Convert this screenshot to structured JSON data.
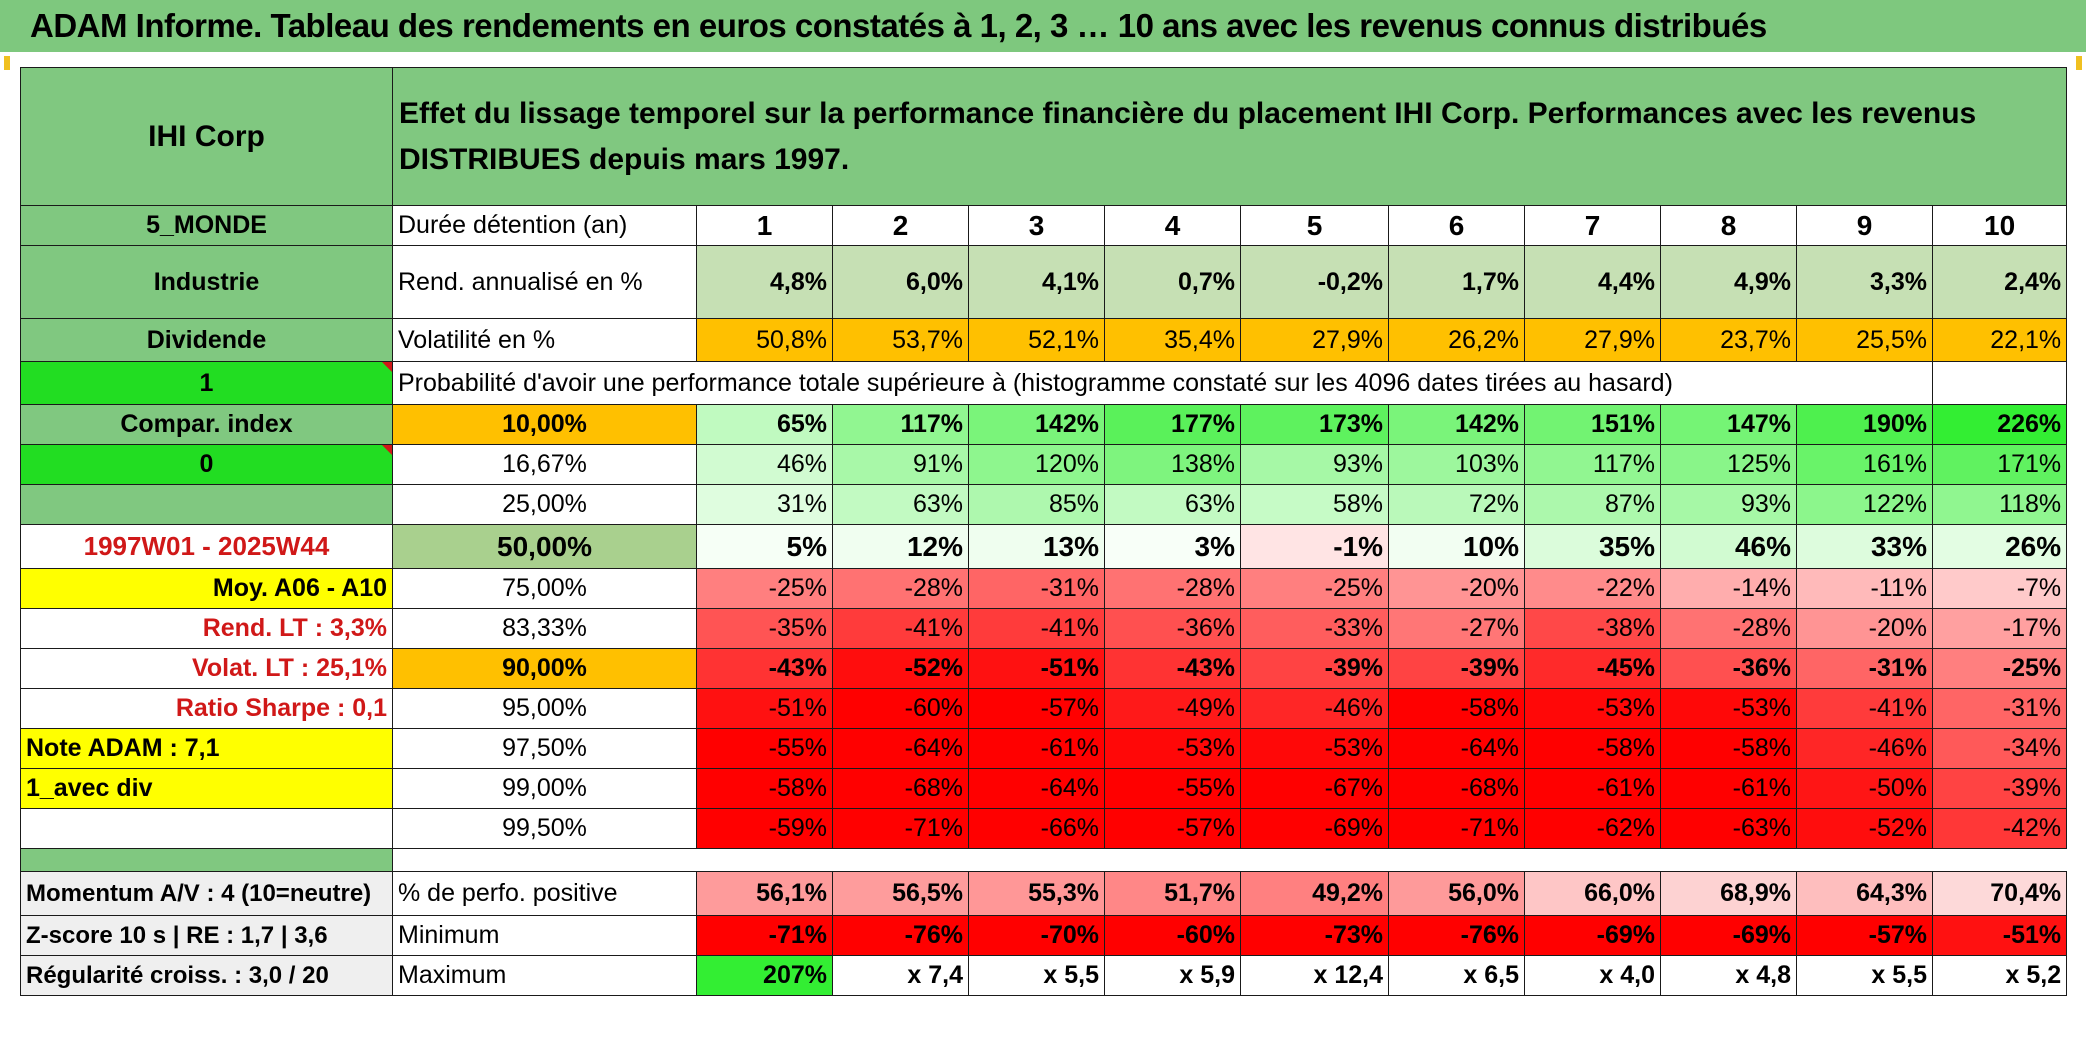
{
  "title": "ADAM Informe. Tableau des rendements en euros constatés à 1, 2, 3 … 10 ans avec les revenus connus distribués",
  "company": "IHI Corp",
  "heading": "Effet du lissage temporel sur la performance financière du placement IHI Corp. Performances avec les revenus DISTRIBUES depuis mars 1997.",
  "left_labels": {
    "region": "5_MONDE",
    "sector": "Industrie",
    "dividend": "Dividende",
    "flag1": "1",
    "compar": "Compar. index",
    "flag0": "0",
    "period": "1997W01 - 2025W44",
    "moy": "Moy. A06 - A10",
    "rend_lt": "Rend. LT :   3,3%",
    "volat_lt": "Volat. LT :   25,1%",
    "sharpe": "Ratio Sharpe :    0,1",
    "note": "Note ADAM : 7,1",
    "avec_div": "1_avec div",
    "momentum": "Momentum A/V : 4 (10=neutre)",
    "zscore": "Z-score 10 s | RE : 1,7 | 3,6",
    "regularite": "Régularité croiss. : 3,0 / 20"
  },
  "row_labels": {
    "duree": "Durée détention (an)",
    "rend": "Rend. annualisé en %",
    "volat": "Volatilité en %",
    "proba": "Probabilité d'avoir une performance totale supérieure à (histogramme constaté sur les 4096 dates tirées au hasard)",
    "positive": "% de perfo. positive",
    "minimum": "Minimum",
    "maximum": "Maximum"
  },
  "years": [
    "1",
    "2",
    "3",
    "4",
    "5",
    "6",
    "7",
    "8",
    "9",
    "10"
  ],
  "rend": [
    "4,8%",
    "6,0%",
    "4,1%",
    "0,7%",
    "-0,2%",
    "1,7%",
    "4,4%",
    "4,9%",
    "3,3%",
    "2,4%"
  ],
  "volat": [
    "50,8%",
    "53,7%",
    "52,1%",
    "35,4%",
    "27,9%",
    "26,2%",
    "27,9%",
    "23,7%",
    "25,5%",
    "22,1%"
  ],
  "prob_rows": [
    {
      "pct": "10,00%",
      "vals": [
        "65%",
        "117%",
        "142%",
        "177%",
        "173%",
        "142%",
        "151%",
        "147%",
        "190%",
        "226%"
      ]
    },
    {
      "pct": "16,67%",
      "vals": [
        "46%",
        "91%",
        "120%",
        "138%",
        "93%",
        "103%",
        "117%",
        "125%",
        "161%",
        "171%"
      ]
    },
    {
      "pct": "25,00%",
      "vals": [
        "31%",
        "63%",
        "85%",
        "63%",
        "58%",
        "72%",
        "87%",
        "93%",
        "122%",
        "118%"
      ]
    },
    {
      "pct": "50,00%",
      "vals": [
        "5%",
        "12%",
        "13%",
        "3%",
        "-1%",
        "10%",
        "35%",
        "46%",
        "33%",
        "26%"
      ]
    },
    {
      "pct": "75,00%",
      "vals": [
        "-25%",
        "-28%",
        "-31%",
        "-28%",
        "-25%",
        "-20%",
        "-22%",
        "-14%",
        "-11%",
        "-7%"
      ]
    },
    {
      "pct": "83,33%",
      "vals": [
        "-35%",
        "-41%",
        "-41%",
        "-36%",
        "-33%",
        "-27%",
        "-38%",
        "-28%",
        "-20%",
        "-17%"
      ]
    },
    {
      "pct": "90,00%",
      "vals": [
        "-43%",
        "-52%",
        "-51%",
        "-43%",
        "-39%",
        "-39%",
        "-45%",
        "-36%",
        "-31%",
        "-25%"
      ]
    },
    {
      "pct": "95,00%",
      "vals": [
        "-51%",
        "-60%",
        "-57%",
        "-49%",
        "-46%",
        "-58%",
        "-53%",
        "-53%",
        "-41%",
        "-31%"
      ]
    },
    {
      "pct": "97,50%",
      "vals": [
        "-55%",
        "-64%",
        "-61%",
        "-53%",
        "-53%",
        "-64%",
        "-58%",
        "-58%",
        "-46%",
        "-34%"
      ]
    },
    {
      "pct": "99,00%",
      "vals": [
        "-58%",
        "-68%",
        "-64%",
        "-55%",
        "-67%",
        "-68%",
        "-61%",
        "-61%",
        "-50%",
        "-39%"
      ]
    },
    {
      "pct": "99,50%",
      "vals": [
        "-59%",
        "-71%",
        "-66%",
        "-57%",
        "-69%",
        "-71%",
        "-62%",
        "-63%",
        "-52%",
        "-42%"
      ]
    }
  ],
  "positive": [
    "56,1%",
    "56,5%",
    "55,3%",
    "51,7%",
    "49,2%",
    "56,0%",
    "66,0%",
    "68,9%",
    "64,3%",
    "70,4%"
  ],
  "minimum": [
    "-71%",
    "-76%",
    "-70%",
    "-60%",
    "-73%",
    "-76%",
    "-69%",
    "-69%",
    "-57%",
    "-51%"
  ],
  "maximum": [
    "207%",
    "x 7,4",
    "x 5,5",
    "x 5,9",
    "x 12,4",
    "x 6,5",
    "x 4,0",
    "x 4,8",
    "x 5,5",
    "x 5,2"
  ],
  "colors": {
    "title_bg": "#7ec87e",
    "label_green": "#80c880",
    "lime": "#22dd22",
    "yellow": "#ffff00",
    "orange": "#ffc000",
    "red_text": "#d01818",
    "neg_strong": "#ff0000",
    "pos_strong": "#33ee33"
  }
}
